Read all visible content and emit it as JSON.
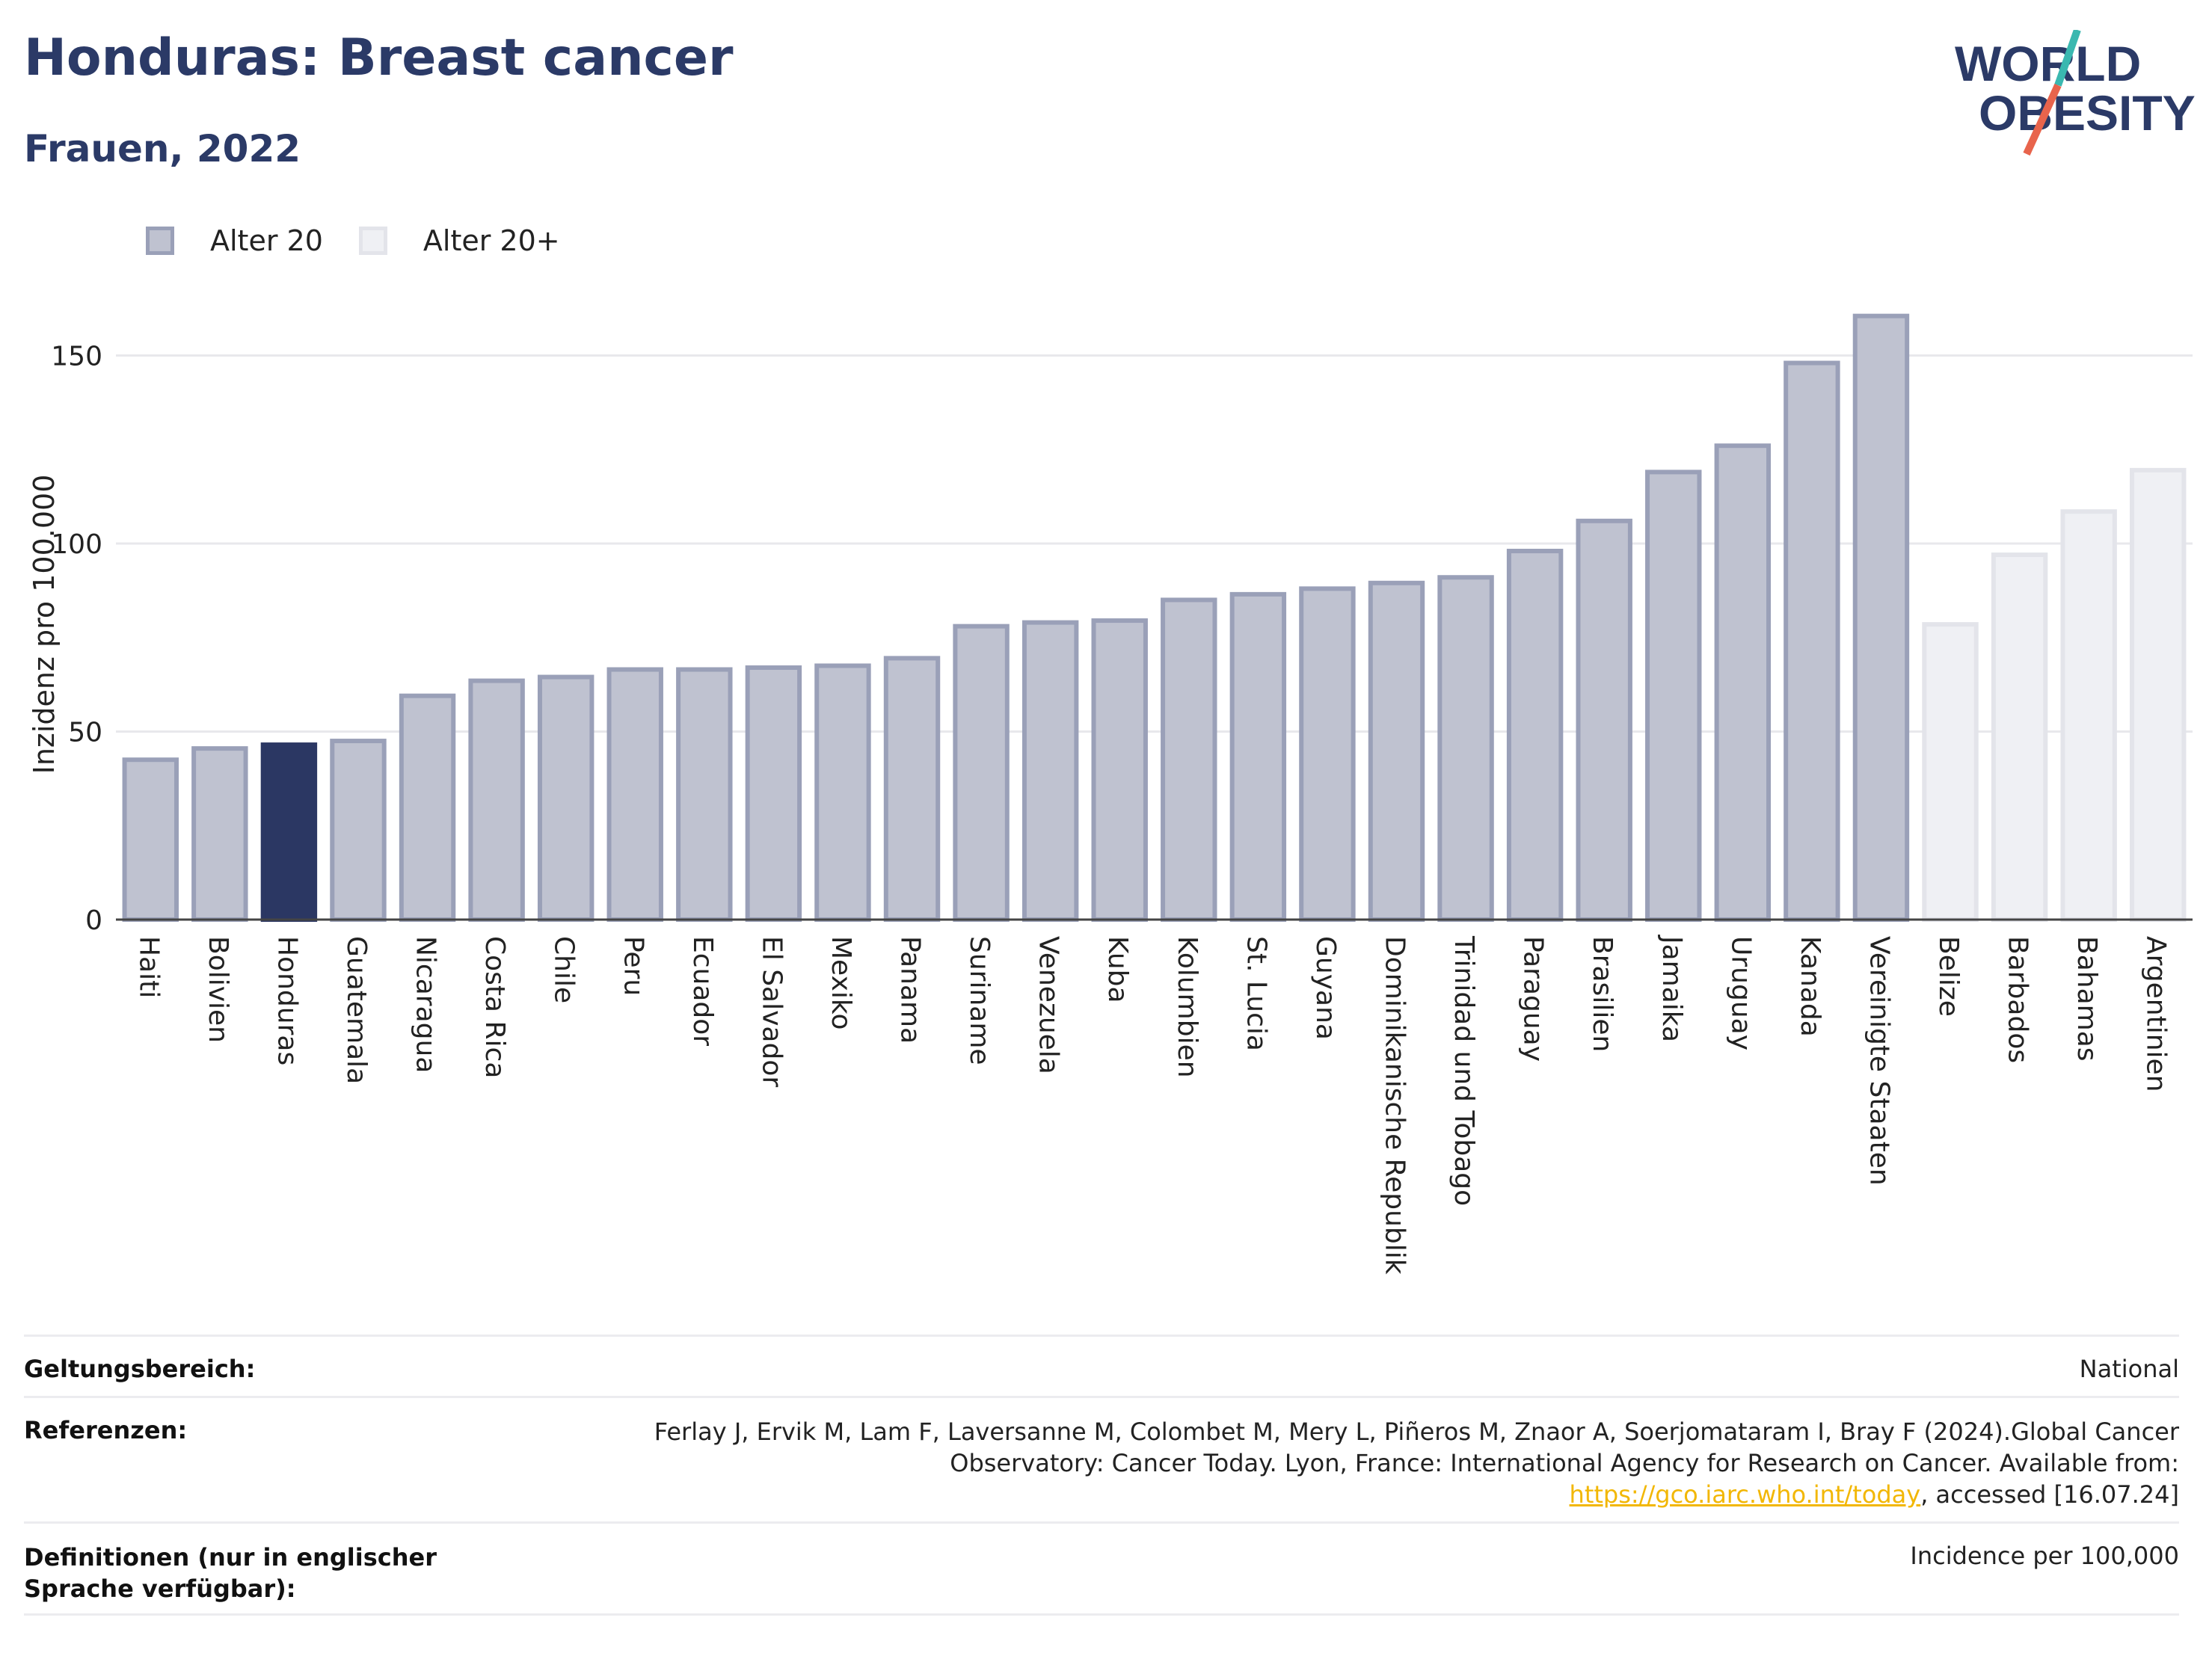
{
  "title": "Honduras: Breast cancer",
  "subtitle": "Frauen, 2022",
  "logo": {
    "line1": "WORLD",
    "line2": "OBESITY",
    "accent_teal": "#3ab8b0",
    "accent_red": "#e8644c"
  },
  "colors": {
    "series1_fill": "#bfc2d0",
    "series1_stroke": "#9aa0b8",
    "series2_fill": "#eff0f4",
    "series2_stroke": "#e3e4ea",
    "highlight": "#2b3763",
    "text_dark": "#2b3a67",
    "grid": "#e8e8ec"
  },
  "legend": [
    {
      "label": "Alter 20",
      "series": "Alter 20"
    },
    {
      "label": "Alter 20+",
      "series": "Alter 20+"
    }
  ],
  "chart_data": {
    "type": "bar",
    "ylabel": "Inzidenz pro 100.000",
    "xlabel": "",
    "ylim": [
      0,
      165
    ],
    "yticks": [
      0,
      50,
      100,
      150
    ],
    "grid": true,
    "legend_position": "top-left",
    "highlight": "Honduras",
    "categories": [
      "Haiti",
      "Bolivien",
      "Honduras",
      "Guatemala",
      "Nicaragua",
      "Costa Rica",
      "Chile",
      "Peru",
      "Ecuador",
      "El Salvador",
      "Mexiko",
      "Panama",
      "Suriname",
      "Venezuela",
      "Kuba",
      "Kolumbien",
      "St. Lucia",
      "Guyana",
      "Dominikanische Republik",
      "Trinidad und Tobago",
      "Paraguay",
      "Brasilien",
      "Jamaika",
      "Uruguay",
      "Kanada",
      "Vereinigte Staaten",
      "Belize",
      "Barbados",
      "Bahamas",
      "Argentinien"
    ],
    "values": [
      42.5,
      45.5,
      46.5,
      47.5,
      59.5,
      63.5,
      64.5,
      66.5,
      66.5,
      67,
      67.5,
      69.5,
      78,
      79,
      79.5,
      85,
      86.5,
      88,
      89.5,
      91,
      98,
      106,
      119,
      126,
      148,
      160.5,
      78.5,
      97,
      108.5,
      119.5
    ],
    "series_of_bar": [
      "Alter 20",
      "Alter 20",
      "Alter 20",
      "Alter 20",
      "Alter 20",
      "Alter 20",
      "Alter 20",
      "Alter 20",
      "Alter 20",
      "Alter 20",
      "Alter 20",
      "Alter 20",
      "Alter 20",
      "Alter 20",
      "Alter 20",
      "Alter 20",
      "Alter 20",
      "Alter 20",
      "Alter 20",
      "Alter 20",
      "Alter 20",
      "Alter 20",
      "Alter 20",
      "Alter 20",
      "Alter 20",
      "Alter 20",
      "Alter 20+",
      "Alter 20+",
      "Alter 20+",
      "Alter 20+"
    ]
  },
  "footer": {
    "scope_label": "Geltungsbereich:",
    "scope_value": "National",
    "refs_label": "Referenzen:",
    "refs_text_before": "Ferlay J, Ervik M, Lam F, Laversanne M, Colombet M, Mery L, Piñeros M, Znaor A, Soerjomataram I, Bray F (2024).Global Cancer Observatory: Cancer Today. Lyon, France: International Agency for Research on Cancer. Available from: ",
    "refs_link": "https://gco.iarc.who.int/today",
    "refs_text_after": ", accessed [16.07.24]",
    "defs_label": "Definitionen (nur in englischer Sprache verfügbar):",
    "defs_value": "Incidence per 100,000"
  }
}
